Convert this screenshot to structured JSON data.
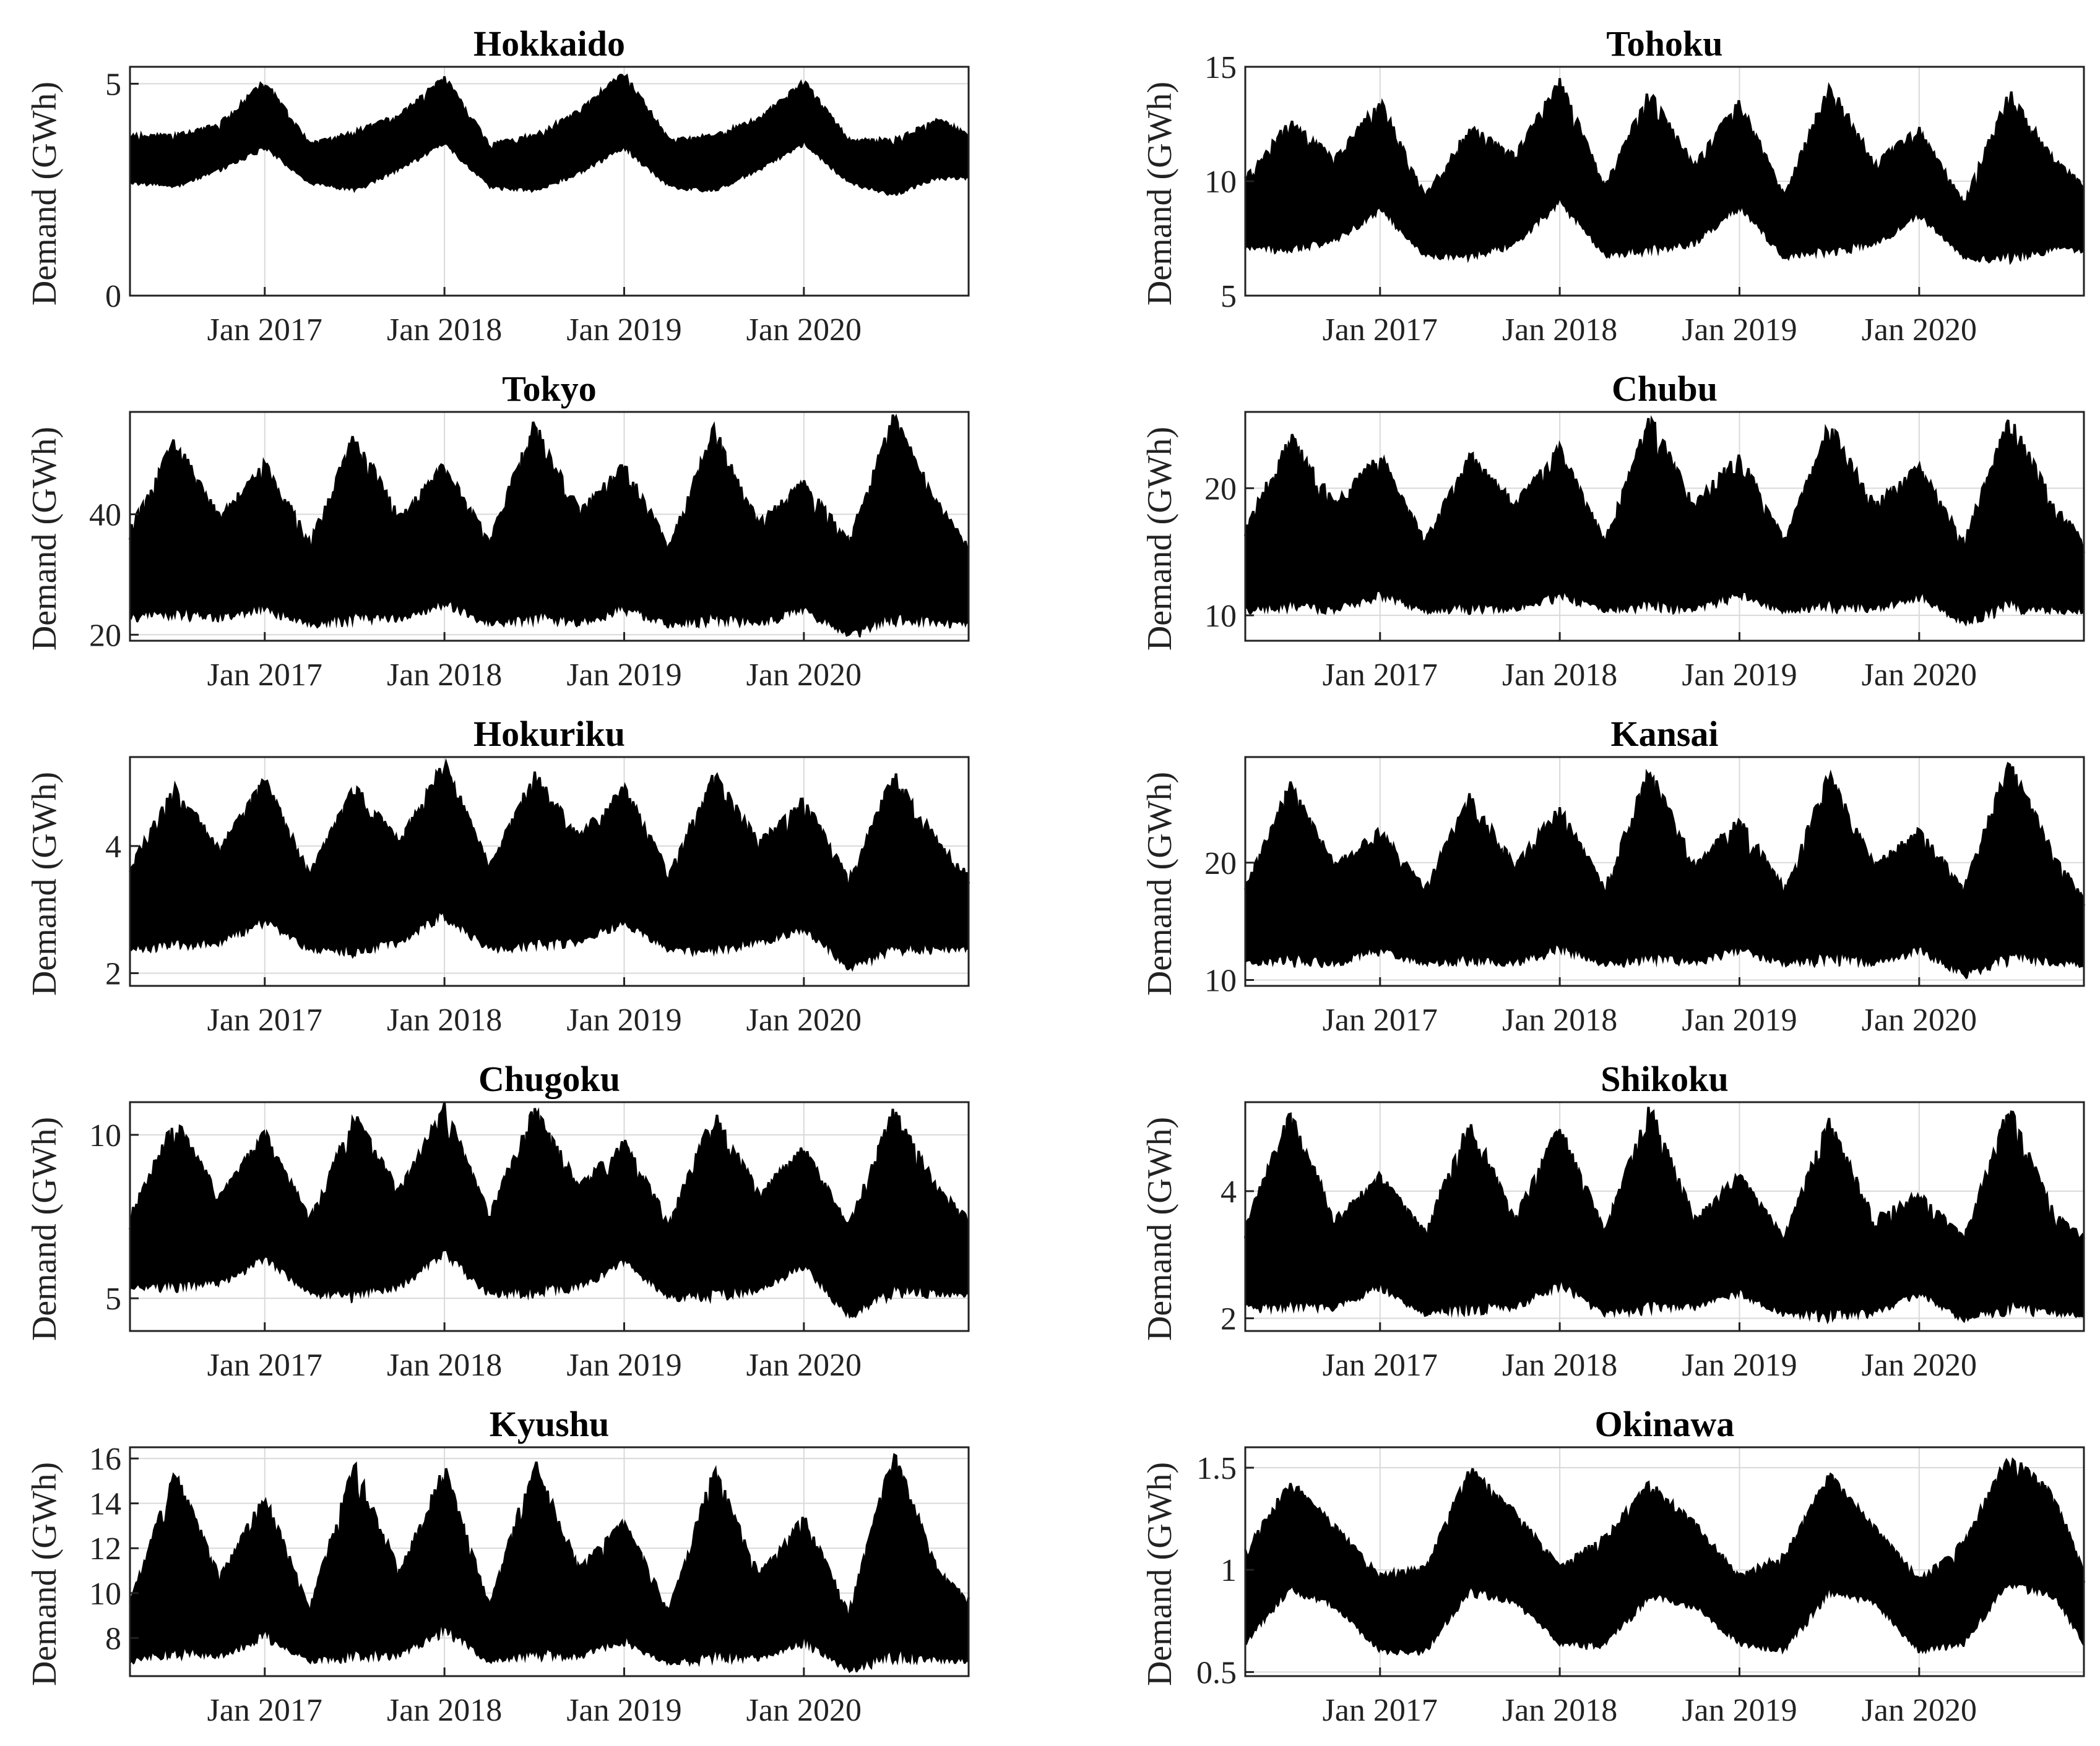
{
  "chart_data": [
    {
      "type": "area",
      "title": "Hokkaido",
      "ylabel": "Demand (GWh)",
      "x_ticks": [
        "Jan 2017",
        "Jan 2018",
        "Jan 2019",
        "Jan 2020"
      ],
      "x_range": [
        "2016-04",
        "2020-12"
      ],
      "ylim": [
        0,
        5.4
      ],
      "yticks": [
        0,
        5
      ],
      "grid": true,
      "series": [
        {
          "x": [
            "2016-04",
            "2016-07",
            "2016-10",
            "2017-01",
            "2017-04",
            "2017-07",
            "2017-10",
            "2018-01",
            "2018-04",
            "2018-07",
            "2018-10",
            "2019-01",
            "2019-04",
            "2019-07",
            "2019-10",
            "2020-01",
            "2020-04",
            "2020-07",
            "2020-10",
            "2020-12"
          ],
          "low": [
            2.6,
            2.5,
            2.9,
            3.4,
            2.6,
            2.4,
            2.9,
            3.5,
            2.5,
            2.4,
            2.8,
            3.4,
            2.5,
            2.4,
            2.9,
            3.5,
            2.6,
            2.3,
            2.7,
            2.7
          ],
          "high": [
            3.8,
            3.8,
            4.1,
            5.1,
            3.6,
            3.9,
            4.3,
            5.2,
            3.6,
            3.8,
            4.4,
            5.3,
            3.7,
            3.8,
            4.2,
            5.1,
            3.7,
            3.7,
            4.2,
            3.8
          ]
        }
      ]
    },
    {
      "type": "area",
      "title": "Tohoku",
      "ylabel": "Demand (GWh)",
      "x_ticks": [
        "Jan 2017",
        "Jan 2018",
        "Jan 2019",
        "Jan 2020"
      ],
      "x_range": [
        "2016-04",
        "2020-12"
      ],
      "ylim": [
        5,
        15
      ],
      "yticks": [
        5,
        10,
        15
      ],
      "grid": true,
      "series": [
        {
          "x": [
            "2016-04",
            "2016-07",
            "2016-10",
            "2017-01",
            "2017-04",
            "2017-07",
            "2017-10",
            "2018-01",
            "2018-04",
            "2018-07",
            "2018-10",
            "2019-01",
            "2019-04",
            "2019-07",
            "2019-10",
            "2020-01",
            "2020-04",
            "2020-07",
            "2020-10",
            "2020-12"
          ],
          "low": [
            6.9,
            6.7,
            7.2,
            8.5,
            6.6,
            6.4,
            7.0,
            8.8,
            6.6,
            6.6,
            7.1,
            8.6,
            6.5,
            6.6,
            7.0,
            8.3,
            6.5,
            6.3,
            6.8,
            6.8
          ],
          "high": [
            10.2,
            12.8,
            11.1,
            13.7,
            9.4,
            12.5,
            11.2,
            14.6,
            9.8,
            14.1,
            10.8,
            13.7,
            9.4,
            14.5,
            10.9,
            12.4,
            9.1,
            14.1,
            11.0,
            9.9
          ]
        }
      ]
    },
    {
      "type": "area",
      "title": "Tokyo",
      "ylabel": "Demand (GWh)",
      "x_ticks": [
        "Jan 2017",
        "Jan 2018",
        "Jan 2019",
        "Jan 2020"
      ],
      "x_range": [
        "2016-04",
        "2020-12"
      ],
      "ylim": [
        19,
        57
      ],
      "yticks": [
        20,
        40
      ],
      "grid": true,
      "series": [
        {
          "x": [
            "2016-04",
            "2016-07",
            "2016-10",
            "2017-01",
            "2017-04",
            "2017-07",
            "2017-10",
            "2018-01",
            "2018-04",
            "2018-07",
            "2018-10",
            "2019-01",
            "2019-04",
            "2019-07",
            "2019-10",
            "2020-01",
            "2020-04",
            "2020-07",
            "2020-10",
            "2020-12"
          ],
          "low": [
            22,
            22,
            22,
            23,
            21,
            21,
            22,
            24,
            21,
            21,
            21,
            23,
            21,
            21,
            21,
            23,
            19,
            21,
            21,
            21
          ],
          "high": [
            38,
            53,
            40,
            49,
            36,
            54,
            40,
            49,
            36,
            56,
            41,
            49,
            35,
            55,
            39,
            46,
            36,
            57,
            42,
            35
          ]
        }
      ]
    },
    {
      "type": "area",
      "title": "Chubu",
      "ylabel": "Demand (GWh)",
      "x_ticks": [
        "Jan 2017",
        "Jan 2018",
        "Jan 2019",
        "Jan 2020"
      ],
      "x_range": [
        "2016-04",
        "2020-12"
      ],
      "ylim": [
        8,
        26
      ],
      "yticks": [
        10,
        20
      ],
      "grid": true,
      "series": [
        {
          "x": [
            "2016-04",
            "2016-07",
            "2016-10",
            "2017-01",
            "2017-04",
            "2017-07",
            "2017-10",
            "2018-01",
            "2018-04",
            "2018-07",
            "2018-10",
            "2019-01",
            "2019-04",
            "2019-07",
            "2019-10",
            "2020-01",
            "2020-04",
            "2020-07",
            "2020-10",
            "2020-12"
          ],
          "low": [
            10,
            10,
            10,
            11,
            10,
            10,
            10,
            11,
            10,
            10,
            10,
            11,
            10,
            10,
            10,
            11,
            9,
            10,
            10,
            10
          ],
          "high": [
            17,
            24.5,
            19,
            23,
            16,
            23,
            19,
            23.5,
            16,
            26,
            19,
            23,
            16,
            25.5,
            19,
            22,
            16,
            26,
            19,
            16
          ]
        }
      ]
    },
    {
      "type": "area",
      "title": "Hokuriku",
      "ylabel": "Demand (GWh)",
      "x_ticks": [
        "Jan 2017",
        "Jan 2018",
        "Jan 2019",
        "Jan 2020"
      ],
      "x_range": [
        "2016-04",
        "2020-12"
      ],
      "ylim": [
        1.8,
        5.4
      ],
      "yticks": [
        2,
        4
      ],
      "grid": true,
      "series": [
        {
          "x": [
            "2016-04",
            "2016-07",
            "2016-10",
            "2017-01",
            "2017-04",
            "2017-07",
            "2017-10",
            "2018-01",
            "2018-04",
            "2018-07",
            "2018-10",
            "2019-01",
            "2019-04",
            "2019-07",
            "2019-10",
            "2020-01",
            "2020-04",
            "2020-07",
            "2020-10",
            "2020-12"
          ],
          "low": [
            2.3,
            2.3,
            2.4,
            2.7,
            2.3,
            2.2,
            2.4,
            2.8,
            2.3,
            2.3,
            2.4,
            2.7,
            2.3,
            2.2,
            2.4,
            2.6,
            2.0,
            2.2,
            2.3,
            2.3
          ],
          "high": [
            3.7,
            5.0,
            4.0,
            5.1,
            3.6,
            5.0,
            4.1,
            5.4,
            3.7,
            5.2,
            4.2,
            5.0,
            3.6,
            5.2,
            4.1,
            4.8,
            3.5,
            5.2,
            4.1,
            3.6
          ]
        }
      ]
    },
    {
      "type": "area",
      "title": "Kansai",
      "ylabel": "Demand (GWh)",
      "x_ticks": [
        "Jan 2017",
        "Jan 2018",
        "Jan 2019",
        "Jan 2020"
      ],
      "x_range": [
        "2016-04",
        "2020-12"
      ],
      "ylim": [
        9.5,
        29
      ],
      "yticks": [
        10,
        20
      ],
      "grid": true,
      "series": [
        {
          "x": [
            "2016-04",
            "2016-07",
            "2016-10",
            "2017-01",
            "2017-04",
            "2017-07",
            "2017-10",
            "2018-01",
            "2018-04",
            "2018-07",
            "2018-10",
            "2019-01",
            "2019-04",
            "2019-07",
            "2019-10",
            "2020-01",
            "2020-04",
            "2020-07",
            "2020-10",
            "2020-12"
          ],
          "low": [
            11,
            11,
            11,
            12,
            11,
            11,
            11,
            12,
            11,
            11,
            11,
            12,
            11,
            11,
            11,
            12,
            10,
            11,
            11,
            11
          ],
          "high": [
            18,
            27,
            20,
            23,
            18,
            26,
            20,
            25,
            18,
            28.5,
            20,
            24,
            18,
            28,
            20,
            23,
            18,
            29,
            21,
            17
          ]
        }
      ]
    },
    {
      "type": "area",
      "title": "Chugoku",
      "ylabel": "Demand (GWh)",
      "x_ticks": [
        "Jan 2017",
        "Jan 2018",
        "Jan 2019",
        "Jan 2020"
      ],
      "x_range": [
        "2016-04",
        "2020-12"
      ],
      "ylim": [
        4,
        11
      ],
      "yticks": [
        5,
        10
      ],
      "grid": true,
      "series": [
        {
          "x": [
            "2016-04",
            "2016-07",
            "2016-10",
            "2017-01",
            "2017-04",
            "2017-07",
            "2017-10",
            "2018-01",
            "2018-04",
            "2018-07",
            "2018-10",
            "2019-01",
            "2019-04",
            "2019-07",
            "2019-10",
            "2020-01",
            "2020-04",
            "2020-07",
            "2020-10",
            "2020-12"
          ],
          "low": [
            5.2,
            5.1,
            5.3,
            6.0,
            5.0,
            4.8,
            5.2,
            6.1,
            5.0,
            4.9,
            5.2,
            5.9,
            4.9,
            4.8,
            5.1,
            5.8,
            4.3,
            4.9,
            5.0,
            5.0
          ],
          "high": [
            7.6,
            10.6,
            8.2,
            10.2,
            7.5,
            10.7,
            8.4,
            11.0,
            7.6,
            11.0,
            8.5,
            9.9,
            7.4,
            10.8,
            8.3,
            9.7,
            7.3,
            10.9,
            8.4,
            7.5
          ]
        }
      ]
    },
    {
      "type": "area",
      "title": "Shikoku",
      "ylabel": "Demand (GWh)",
      "x_ticks": [
        "Jan 2017",
        "Jan 2018",
        "Jan 2019",
        "Jan 2020"
      ],
      "x_range": [
        "2016-04",
        "2020-12"
      ],
      "ylim": [
        1.8,
        5.4
      ],
      "yticks": [
        2,
        4
      ],
      "grid": true,
      "series": [
        {
          "x": [
            "2016-04",
            "2016-07",
            "2016-10",
            "2017-01",
            "2017-04",
            "2017-07",
            "2017-10",
            "2018-01",
            "2018-04",
            "2018-07",
            "2018-10",
            "2019-01",
            "2019-04",
            "2019-07",
            "2019-10",
            "2020-01",
            "2020-04",
            "2020-07",
            "2020-10",
            "2020-12"
          ],
          "low": [
            2.1,
            2.0,
            2.1,
            2.4,
            2.0,
            2.0,
            2.1,
            2.4,
            2.0,
            2.0,
            2.1,
            2.3,
            2.0,
            1.9,
            2.0,
            2.3,
            1.9,
            2.0,
            2.0,
            2.0
          ],
          "high": [
            3.5,
            5.3,
            3.6,
            4.3,
            3.4,
            5.2,
            3.6,
            5.1,
            3.4,
            5.4,
            3.6,
            4.3,
            3.3,
            5.2,
            3.6,
            4.0,
            3.3,
            5.4,
            3.7,
            3.3
          ]
        }
      ]
    },
    {
      "type": "area",
      "title": "Kyushu",
      "ylabel": "Demand (GWh)",
      "x_ticks": [
        "Jan 2017",
        "Jan 2018",
        "Jan 2019",
        "Jan 2020"
      ],
      "x_range": [
        "2016-04",
        "2020-12"
      ],
      "ylim": [
        6.3,
        16.5
      ],
      "yticks": [
        8,
        10,
        12,
        14,
        16
      ],
      "grid": true,
      "series": [
        {
          "x": [
            "2016-04",
            "2016-07",
            "2016-10",
            "2017-01",
            "2017-04",
            "2017-07",
            "2017-10",
            "2018-01",
            "2018-04",
            "2018-07",
            "2018-10",
            "2019-01",
            "2019-04",
            "2019-07",
            "2019-10",
            "2020-01",
            "2020-04",
            "2020-07",
            "2020-10",
            "2020-12"
          ],
          "low": [
            6.8,
            6.9,
            7.0,
            7.8,
            6.8,
            6.8,
            7.0,
            8.0,
            6.8,
            6.8,
            7.0,
            7.6,
            6.7,
            6.7,
            6.9,
            7.5,
            6.4,
            6.7,
            6.8,
            6.8
          ],
          "high": [
            9.6,
            15.6,
            10.8,
            14.5,
            9.4,
            16.0,
            11.0,
            15.8,
            9.5,
            16.1,
            11.2,
            13.3,
            9.3,
            15.8,
            10.9,
            13.6,
            9.2,
            16.5,
            11.0,
            9.8
          ]
        }
      ]
    },
    {
      "type": "area",
      "title": "Okinawa",
      "ylabel": "Demand (GWh)",
      "x_ticks": [
        "Jan 2017",
        "Jan 2018",
        "Jan 2019",
        "Jan 2020"
      ],
      "x_range": [
        "2016-04",
        "2020-12"
      ],
      "ylim": [
        0.48,
        1.6
      ],
      "yticks": [
        0.5,
        1,
        1.5
      ],
      "grid": true,
      "series": [
        {
          "x": [
            "2016-04",
            "2016-07",
            "2016-10",
            "2017-01",
            "2017-04",
            "2017-07",
            "2017-10",
            "2018-01",
            "2018-04",
            "2018-07",
            "2018-10",
            "2019-01",
            "2019-04",
            "2019-07",
            "2019-10",
            "2020-01",
            "2020-04",
            "2020-07",
            "2020-10",
            "2020-12"
          ],
          "low": [
            0.62,
            0.88,
            0.8,
            0.58,
            0.58,
            0.86,
            0.82,
            0.62,
            0.6,
            0.84,
            0.8,
            0.62,
            0.58,
            0.86,
            0.82,
            0.58,
            0.62,
            0.9,
            0.84,
            0.62
          ],
          "high": [
            1.1,
            1.45,
            1.22,
            0.98,
            1.02,
            1.51,
            1.3,
            1.02,
            1.18,
            1.44,
            1.24,
            0.98,
            1.08,
            1.48,
            1.22,
            0.96,
            1.15,
            1.58,
            1.38,
            1.0
          ]
        }
      ]
    }
  ]
}
